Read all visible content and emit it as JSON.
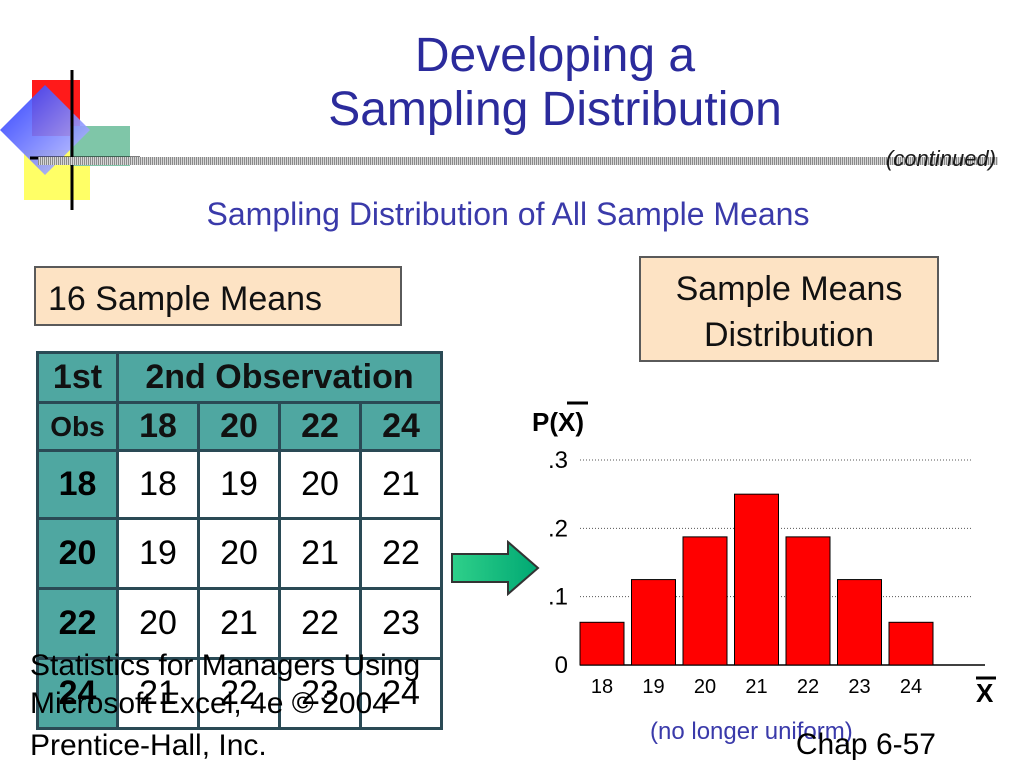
{
  "title": {
    "line1": "Developing a",
    "line2": "Sampling Distribution"
  },
  "continued": "(continued)",
  "subtitle": "Sampling Distribution of All Sample Means",
  "box_left": "16 Sample Means",
  "box_right": {
    "line1": "Sample Means",
    "line2": "Distribution"
  },
  "table": {
    "first_header": "1st",
    "second_header": "2nd Observation",
    "obs_label": "Obs",
    "cols": [
      "18",
      "20",
      "22",
      "24"
    ],
    "rows": [
      {
        "head": "18",
        "cells": [
          "18",
          "19",
          "20",
          "21"
        ]
      },
      {
        "head": "20",
        "cells": [
          "19",
          "20",
          "21",
          "22"
        ]
      },
      {
        "head": "22",
        "cells": [
          "20",
          "21",
          "22",
          "23"
        ]
      },
      {
        "head": "24",
        "cells": [
          "21",
          "22",
          "23",
          "24"
        ]
      }
    ]
  },
  "chart_data": {
    "type": "bar",
    "categories": [
      "18",
      "19",
      "20",
      "21",
      "22",
      "23",
      "24"
    ],
    "values": [
      0.0625,
      0.125,
      0.1875,
      0.25,
      0.1875,
      0.125,
      0.0625
    ],
    "ylabel": "P(X)",
    "xlabel": "X",
    "yticks": [
      "0",
      ".1",
      ".2",
      ".3"
    ],
    "ylim": [
      0,
      0.3
    ],
    "bar_color": "#ff0000",
    "grid": true
  },
  "no_longer": "(no longer uniform)",
  "footer": {
    "line1": "Statistics for Managers Using",
    "line2": "Microsoft Excel, 4e © 2004",
    "line3": "Prentice-Hall, Inc.",
    "chap": "Chap 6-57"
  },
  "colors": {
    "title": "#2b2b9c",
    "table_header": "#4fa7a1",
    "box_fill": "#fde3c4"
  }
}
